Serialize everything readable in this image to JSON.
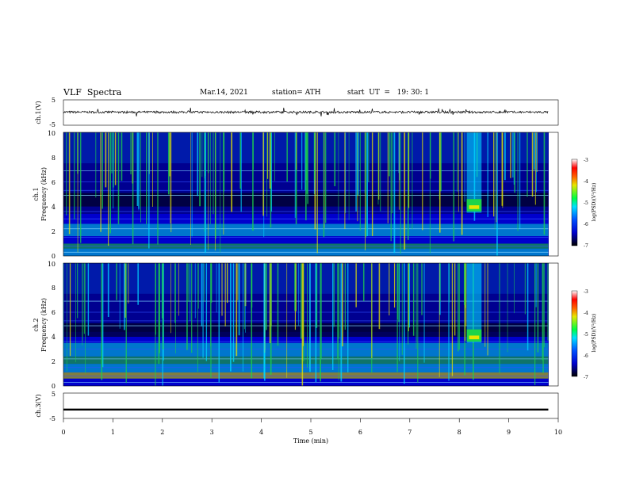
{
  "header": {
    "title": "VLF  Spectra",
    "date": "Mar.14, 2021",
    "station": "station= ATH",
    "start_ut": "start  UT  =   19: 30: 1"
  },
  "colors": {
    "spectrogram_base": "#00008b",
    "noise_low": "#0000ff",
    "noise_mid": "#00d7ff",
    "burst_green": "#1cd44a",
    "burst_yellow": "#e6e600",
    "hot": "#ff3300"
  },
  "chart_data": [
    {
      "id": "ch1_waveform",
      "type": "line",
      "ylabel": "ch.1(V)",
      "ylim": [
        -5,
        5
      ],
      "yticks": [
        "5",
        "-5"
      ],
      "xlim": [
        0,
        10
      ],
      "series": [
        {
          "x": [
            0,
            1,
            2,
            3,
            4,
            5,
            6,
            7,
            8,
            9,
            9.8
          ],
          "y": [
            0.2,
            0.1,
            0.2,
            0.1,
            0.2,
            0.1,
            0.2,
            0.1,
            0.2,
            0.1,
            0.1
          ]
        }
      ]
    },
    {
      "id": "ch1_spectrogram",
      "type": "heatmap",
      "ylabel_top": "ch.1",
      "ylabel": "Frequency  (kHz)",
      "ylim": [
        0,
        10
      ],
      "yticks": [
        "0",
        "2",
        "4",
        "6",
        "8",
        "10"
      ],
      "xlim": [
        0,
        10
      ],
      "colorbar": {
        "label": "log(PSD)(V²/Hz)",
        "range": [
          -7,
          -3
        ],
        "ticks": [
          "-3",
          "-4",
          "-5",
          "-6",
          "-7"
        ]
      },
      "features": {
        "burst_time_min": [
          8.15,
          8.45
        ],
        "burst_freq_khz": [
          3.5,
          10
        ]
      }
    },
    {
      "id": "ch2_spectrogram",
      "type": "heatmap",
      "ylabel_top": "ch.2",
      "ylabel": "Frequency  (kHz)",
      "ylim": [
        0,
        10
      ],
      "yticks": [
        "0",
        "2",
        "4",
        "6",
        "8",
        "10"
      ],
      "xlim": [
        0,
        10
      ],
      "colorbar": {
        "label": "log(PSD)(V²/Hz)",
        "range": [
          -7,
          -3
        ],
        "ticks": [
          "-3",
          "-4",
          "-5",
          "-6",
          "-7"
        ]
      },
      "features": {
        "burst_time_min": [
          8.15,
          8.45
        ],
        "burst_freq_khz": [
          3.5,
          10
        ]
      }
    },
    {
      "id": "ch3_waveform",
      "type": "line",
      "ylabel": "ch.3(V)",
      "ylim": [
        -5,
        5
      ],
      "yticks": [
        "5",
        "-5"
      ],
      "xlim": [
        0,
        10
      ],
      "xlabel": "Time  (min)",
      "xticks": [
        "0",
        "1",
        "2",
        "3",
        "4",
        "5",
        "6",
        "7",
        "8",
        "9",
        "10"
      ],
      "series": [
        {
          "x": [
            0,
            9.8
          ],
          "y": [
            -1.5,
            -1.5
          ]
        }
      ]
    }
  ]
}
